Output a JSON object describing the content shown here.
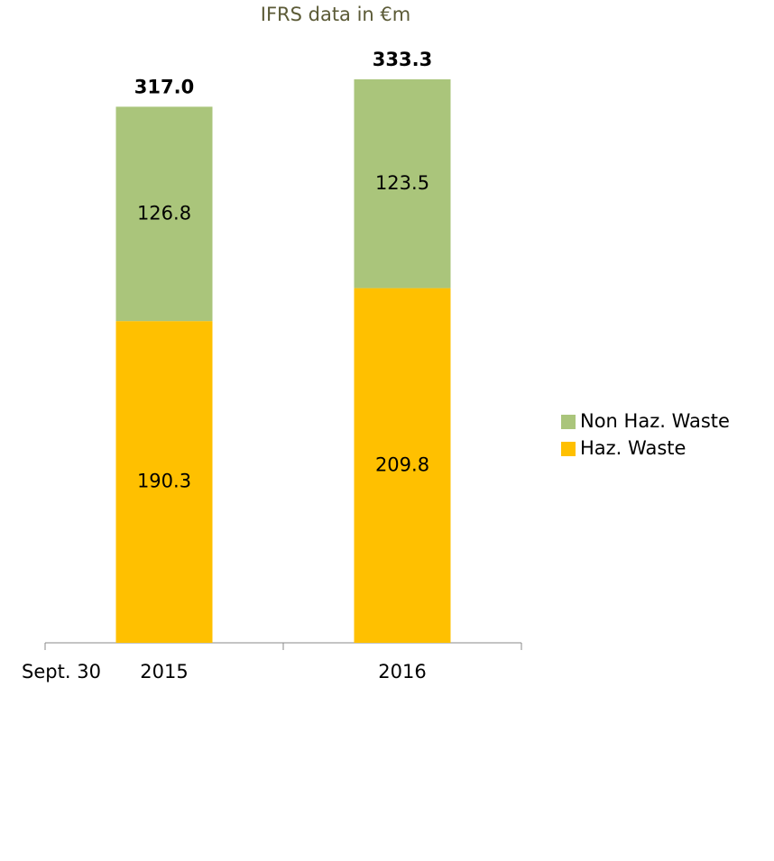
{
  "chart_data": {
    "type": "stacked-bar",
    "title": "IFRS data in €m",
    "x_annotation": "Sept. 30",
    "categories": [
      "2015",
      "2016"
    ],
    "series": [
      {
        "name": "Haz. Waste",
        "color": "#ffc000",
        "values": [
          190.3,
          209.8
        ]
      },
      {
        "name": "Non Haz. Waste",
        "color": "#aac57b",
        "values": [
          126.8,
          123.5
        ]
      }
    ],
    "totals": {
      "values": [
        317,
        333.3
      ],
      "value_labels": [
        "317.0",
        "333.3"
      ]
    },
    "legend": "right"
  }
}
